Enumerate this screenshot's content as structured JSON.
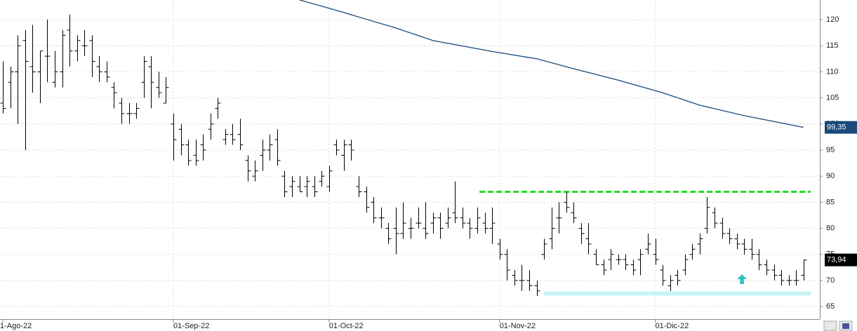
{
  "chart_data": {
    "type": "ohlc",
    "color": "#000000",
    "categories": [
      "1-Ago-22",
      null,
      null,
      null,
      null,
      null,
      null,
      null,
      null,
      null,
      null,
      null,
      null,
      null,
      null,
      null,
      null,
      null,
      null,
      null,
      null,
      null,
      null,
      "01-Sep-22",
      null,
      null,
      null,
      null,
      null,
      null,
      null,
      null,
      null,
      null,
      null,
      null,
      null,
      null,
      null,
      null,
      null,
      null,
      null,
      null,
      "01-Oct-22",
      null,
      null,
      null,
      null,
      null,
      null,
      null,
      null,
      null,
      null,
      null,
      null,
      null,
      null,
      null,
      null,
      null,
      null,
      null,
      null,
      null,
      null,
      "01-Nov-22",
      null,
      null,
      null,
      null,
      null,
      null,
      null,
      null,
      null,
      null,
      null,
      null,
      null,
      null,
      null,
      null,
      null,
      null,
      null,
      null,
      "01-Dic-22",
      null,
      null,
      null,
      null,
      null,
      null,
      null,
      null,
      null,
      null,
      null,
      null,
      null,
      null,
      null,
      null,
      null,
      null,
      null,
      null
    ],
    "ohlc": [
      [
        104,
        112,
        102,
        103
      ],
      [
        108,
        111,
        103,
        110
      ],
      [
        110,
        117,
        100,
        115
      ],
      [
        116,
        118,
        95,
        112
      ],
      [
        111,
        119,
        106,
        110
      ],
      [
        110,
        114,
        104,
        114
      ],
      [
        113,
        120,
        108,
        113
      ],
      [
        108,
        114,
        107,
        110
      ],
      [
        110,
        118,
        107,
        117
      ],
      [
        118,
        121,
        111,
        114
      ],
      [
        114,
        117,
        112,
        116
      ],
      [
        115,
        118,
        113,
        115
      ],
      [
        116,
        117,
        109,
        112
      ],
      [
        111,
        113,
        108,
        110
      ],
      [
        110,
        112,
        108,
        109
      ],
      [
        107,
        108,
        103,
        106
      ],
      [
        104,
        105,
        100,
        102
      ],
      [
        102,
        104,
        100,
        102
      ],
      [
        102,
        104,
        101,
        103
      ],
      [
        108,
        113,
        105,
        112
      ],
      [
        111,
        113,
        103,
        108
      ],
      [
        107,
        110,
        105,
        106
      ],
      [
        104,
        109,
        104,
        107
      ],
      [
        100,
        102,
        93,
        97
      ],
      [
        99,
        100,
        94,
        96
      ],
      [
        96,
        97,
        92,
        93
      ],
      [
        94,
        97,
        92,
        93
      ],
      [
        96,
        98,
        93,
        95
      ],
      [
        99,
        102,
        97,
        100
      ],
      [
        103,
        105,
        101,
        104
      ],
      [
        97,
        99,
        96,
        98
      ],
      [
        98,
        100,
        96,
        97
      ],
      [
        98,
        101,
        95,
        96
      ],
      [
        93,
        94,
        89,
        91
      ],
      [
        90,
        93,
        89,
        91
      ],
      [
        94,
        97,
        91,
        95
      ],
      [
        95,
        98,
        93,
        96
      ],
      [
        97,
        99,
        92,
        93
      ],
      [
        90,
        91,
        86,
        87
      ],
      [
        88,
        90,
        86,
        89
      ],
      [
        88,
        90,
        87,
        87
      ],
      [
        88,
        90,
        86,
        89
      ],
      [
        88,
        90,
        86,
        87
      ],
      [
        89,
        91,
        88,
        90
      ],
      [
        88,
        92,
        87,
        91
      ],
      [
        96,
        97,
        94,
        95
      ],
      [
        94,
        97,
        91,
        96
      ],
      [
        96,
        97,
        93,
        95
      ],
      [
        88,
        90,
        86,
        87
      ],
      [
        87,
        88,
        83,
        84
      ],
      [
        85,
        86,
        81,
        82
      ],
      [
        82,
        84,
        80,
        82
      ],
      [
        80,
        81,
        77,
        78
      ],
      [
        80,
        84,
        75,
        79
      ],
      [
        79,
        85,
        78,
        81
      ],
      [
        80,
        82,
        78,
        80
      ],
      [
        81,
        84,
        80,
        81
      ],
      [
        80,
        85,
        78,
        79
      ],
      [
        81,
        83,
        79,
        82
      ],
      [
        82,
        83,
        78,
        80
      ],
      [
        81,
        84,
        80,
        82
      ],
      [
        83,
        89,
        81,
        82
      ],
      [
        82,
        84,
        80,
        81
      ],
      [
        81,
        82,
        78,
        80
      ],
      [
        80,
        84,
        79,
        82
      ],
      [
        81,
        83,
        79,
        80
      ],
      [
        80,
        84,
        77,
        81
      ],
      [
        77,
        78,
        74,
        75
      ],
      [
        75,
        76,
        70,
        72
      ],
      [
        71,
        72,
        69,
        70
      ],
      [
        70,
        73,
        68,
        70
      ],
      [
        70,
        72,
        68,
        69
      ],
      [
        69,
        70,
        67,
        68
      ],
      [
        75,
        78,
        74,
        77
      ],
      [
        78,
        84,
        76,
        80
      ],
      [
        82,
        85,
        79,
        82
      ],
      [
        85,
        87,
        83,
        84
      ],
      [
        83,
        85,
        81,
        82
      ],
      [
        80,
        81,
        77,
        79
      ],
      [
        78,
        81,
        75,
        77
      ],
      [
        75,
        76,
        73,
        73
      ],
      [
        73,
        74,
        71,
        72
      ],
      [
        74,
        76,
        72,
        75
      ],
      [
        74,
        75,
        73,
        74
      ],
      [
        74,
        75,
        72,
        73
      ],
      [
        73,
        74,
        71,
        72
      ],
      [
        74,
        76,
        71,
        75
      ],
      [
        76,
        79,
        75,
        77
      ],
      [
        75,
        78,
        73,
        74
      ],
      [
        72,
        73,
        69,
        70
      ],
      [
        69,
        71,
        68,
        70
      ],
      [
        71,
        72,
        69,
        70
      ],
      [
        72,
        75,
        71,
        74
      ],
      [
        75,
        77,
        74,
        76
      ],
      [
        77,
        79,
        75,
        78
      ],
      [
        80,
        86,
        79,
        84
      ],
      [
        83,
        84,
        80,
        81
      ],
      [
        81,
        82,
        78,
        79
      ],
      [
        79,
        80,
        77,
        78
      ],
      [
        78,
        79,
        76,
        77
      ],
      [
        77,
        78,
        75,
        76
      ],
      [
        76,
        78,
        74,
        75
      ],
      [
        75,
        76,
        72,
        73
      ],
      [
        73,
        74,
        71,
        72
      ],
      [
        72,
        73,
        70,
        71
      ],
      [
        71,
        72,
        69,
        70
      ],
      [
        70,
        71,
        69,
        70
      ],
      [
        70,
        72,
        69,
        70
      ],
      [
        71,
        74,
        70,
        73.94
      ]
    ],
    "moving_average": {
      "color": "#1a4a7a",
      "x": [
        40,
        45,
        53,
        58,
        66,
        72,
        77,
        83,
        89,
        94,
        100,
        108
      ],
      "values": [
        123.8,
        121.8,
        118.4,
        116,
        113.9,
        112.5,
        110.6,
        108.4,
        106,
        103.6,
        101.6,
        99.35
      ]
    },
    "levels": [
      {
        "value": 87,
        "from": 64.3,
        "to": 109,
        "color": "#22dd22",
        "style": "dashed"
      },
      {
        "value": 67.5,
        "from": 73,
        "to": 109,
        "color": "#c8f4f4",
        "style": "solid"
      }
    ],
    "price_tags": [
      {
        "value": 99.35,
        "label": "99,35",
        "color": "#1a4a7a"
      },
      {
        "value": 73.94,
        "label": "73,94",
        "color": "#000000"
      }
    ],
    "xlim": [
      -0.38,
      110.2
    ],
    "ylim": [
      62.6,
      123.77
    ],
    "yticks": [
      65,
      70,
      75,
      80,
      85,
      90,
      95,
      100,
      105,
      110,
      115,
      120
    ],
    "grid": true
  }
}
